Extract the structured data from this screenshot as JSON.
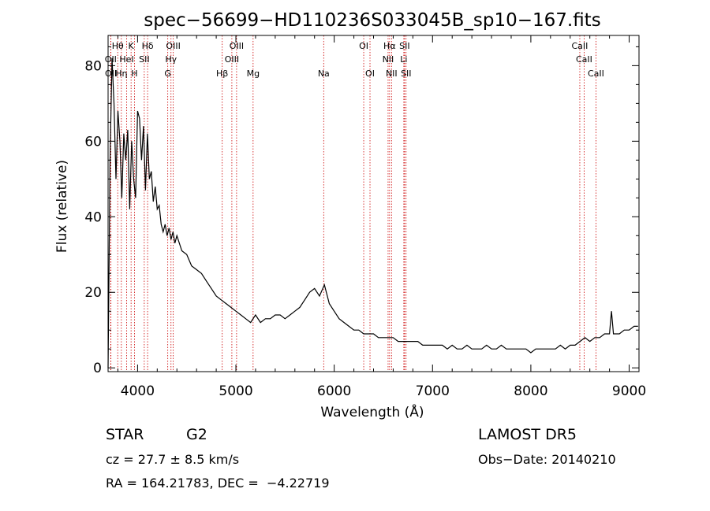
{
  "chart_data": {
    "type": "line",
    "title": "spec−56699−HD110236S033045B_sp10−167.fits",
    "xlabel": "Wavelength (Å)",
    "ylabel": "Flux (relative)",
    "xlim": [
      3700,
      9100
    ],
    "ylim": [
      -1,
      88
    ],
    "x_ticks": [
      4000,
      5000,
      6000,
      7000,
      8000,
      9000
    ],
    "y_ticks": [
      0,
      20,
      40,
      60,
      80
    ],
    "line_color": "#000000",
    "marker_color": "#cc0000",
    "grid": false,
    "series": [
      {
        "x": [
          3700,
          3720,
          3740,
          3760,
          3780,
          3800,
          3820,
          3840,
          3860,
          3880,
          3900,
          3920,
          3940,
          3960,
          3980,
          4000,
          4020,
          4040,
          4060,
          4080,
          4100,
          4120,
          4140,
          4160,
          4180,
          4200,
          4220,
          4240,
          4260,
          4280,
          4300,
          4320,
          4340,
          4360,
          4380,
          4400,
          4450,
          4500,
          4550,
          4600,
          4650,
          4700,
          4750,
          4800,
          4850,
          4900,
          4950,
          5000,
          5050,
          5100,
          5150,
          5200,
          5250,
          5300,
          5350,
          5400,
          5450,
          5500,
          5550,
          5600,
          5650,
          5700,
          5750,
          5800,
          5850,
          5900,
          5950,
          6000,
          6050,
          6100,
          6150,
          6200,
          6250,
          6300,
          6350,
          6400,
          6450,
          6500,
          6550,
          6600,
          6650,
          6700,
          6750,
          6800,
          6850,
          6900,
          6950,
          7000,
          7050,
          7100,
          7150,
          7200,
          7250,
          7300,
          7350,
          7400,
          7450,
          7500,
          7550,
          7600,
          7650,
          7700,
          7750,
          7800,
          7850,
          7900,
          7950,
          8000,
          8050,
          8100,
          8150,
          8200,
          8250,
          8300,
          8350,
          8400,
          8450,
          8500,
          8550,
          8600,
          8650,
          8700,
          8750,
          8800,
          8820,
          8840,
          8860,
          8900,
          8950,
          9000,
          9050,
          9090
        ],
        "y": [
          0,
          55,
          82,
          70,
          50,
          68,
          60,
          45,
          62,
          55,
          63,
          42,
          60,
          50,
          45,
          68,
          66,
          55,
          64,
          47,
          62,
          50,
          52,
          44,
          48,
          42,
          43,
          38,
          36,
          38,
          35,
          37,
          34,
          36,
          33,
          35,
          31,
          30,
          27,
          26,
          25,
          23,
          21,
          19,
          18,
          17,
          16,
          15,
          14,
          13,
          12,
          14,
          12,
          13,
          13,
          14,
          14,
          13,
          14,
          15,
          16,
          18,
          20,
          21,
          19,
          22,
          17,
          15,
          13,
          12,
          11,
          10,
          10,
          9,
          9,
          9,
          8,
          8,
          8,
          8,
          7,
          7,
          7,
          7,
          7,
          6,
          6,
          6,
          6,
          6,
          5,
          6,
          5,
          5,
          6,
          5,
          5,
          5,
          6,
          5,
          5,
          6,
          5,
          5,
          5,
          5,
          5,
          4,
          5,
          5,
          5,
          5,
          5,
          6,
          5,
          6,
          6,
          7,
          8,
          7,
          8,
          8,
          9,
          9,
          15,
          9,
          9,
          9,
          10,
          10,
          11,
          11
        ]
      }
    ],
    "lines": [
      {
        "label": "Hθ",
        "x": 3798,
        "row": 0
      },
      {
        "label": "K",
        "x": 3934,
        "row": 0
      },
      {
        "label": "Hδ",
        "x": 4102,
        "row": 0
      },
      {
        "label": "OIII",
        "x": 4363,
        "row": 0
      },
      {
        "label": "OIII",
        "x": 5007,
        "row": 0
      },
      {
        "label": "OI",
        "x": 6300,
        "row": 0
      },
      {
        "label": "Hα",
        "x": 6563,
        "row": 0
      },
      {
        "label": "SII",
        "x": 6716,
        "row": 0
      },
      {
        "label": "CaII",
        "x": 8498,
        "row": 0
      },
      {
        "label": "OII",
        "x": 3727,
        "row": 1
      },
      {
        "label": "HeI",
        "x": 3889,
        "row": 1
      },
      {
        "label": "SII",
        "x": 4068,
        "row": 1
      },
      {
        "label": "Hγ",
        "x": 4340,
        "row": 1
      },
      {
        "label": "OIII",
        "x": 4959,
        "row": 1
      },
      {
        "label": "NII",
        "x": 6548,
        "row": 1
      },
      {
        "label": "Li",
        "x": 6708,
        "row": 1
      },
      {
        "label": "CaII",
        "x": 8542,
        "row": 1
      },
      {
        "label": "OII",
        "x": 3729,
        "row": 2
      },
      {
        "label": "Hη",
        "x": 3835,
        "row": 2
      },
      {
        "label": "H",
        "x": 3968,
        "row": 2
      },
      {
        "label": "G",
        "x": 4307,
        "row": 2
      },
      {
        "label": "Hβ",
        "x": 4861,
        "row": 2
      },
      {
        "label": "Mg",
        "x": 5175,
        "row": 2
      },
      {
        "label": "Na",
        "x": 5893,
        "row": 2
      },
      {
        "label": "OI",
        "x": 6364,
        "row": 2
      },
      {
        "label": "NII",
        "x": 6583,
        "row": 2
      },
      {
        "label": "SII",
        "x": 6731,
        "row": 2
      },
      {
        "label": "CaII",
        "x": 8662,
        "row": 2
      }
    ]
  },
  "info": {
    "object_class": "STAR",
    "subclass": "G2",
    "cz": "cz = 27.7 ± 8.5 km/s",
    "coords": "RA = 164.21783, DEC =  −4.22719",
    "survey": "LAMOST DR5",
    "obs_date": "Obs−Date: 20140210"
  }
}
